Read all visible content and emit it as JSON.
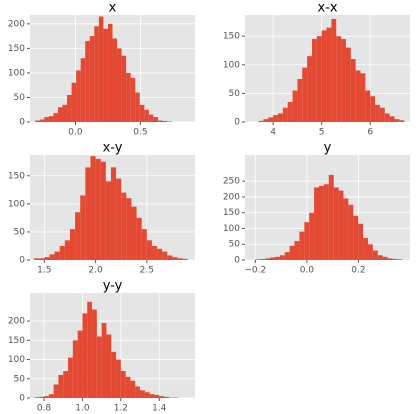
{
  "chart_data": [
    {
      "type": "histogram",
      "title": "x",
      "color": "#e24a33",
      "grid": true,
      "bins": [
        -0.31,
        -0.275,
        -0.24,
        -0.205,
        -0.17,
        -0.135,
        -0.1,
        -0.065,
        -0.03,
        0.005,
        0.04,
        0.075,
        0.11,
        0.145,
        0.18,
        0.215,
        0.25,
        0.285,
        0.32,
        0.355,
        0.39,
        0.425,
        0.46,
        0.495,
        0.53,
        0.565,
        0.6,
        0.635,
        0.67,
        0.705,
        0.74
      ],
      "counts": [
        3,
        5,
        10,
        12,
        18,
        30,
        35,
        55,
        80,
        105,
        130,
        165,
        175,
        195,
        215,
        190,
        200,
        170,
        150,
        135,
        100,
        90,
        60,
        35,
        25,
        15,
        10,
        3,
        2,
        1
      ],
      "xlim": [
        -0.35,
        0.92
      ],
      "ylim": [
        0,
        218
      ],
      "xticks": [
        {
          "value": 0,
          "label": "0.0"
        },
        0.5
      ],
      "yticks": [
        0,
        50,
        100,
        150,
        200
      ]
    },
    {
      "type": "histogram",
      "title": "x-x",
      "color": "#e24a33",
      "grid": true,
      "bins": [
        3.7,
        3.8,
        3.9,
        4.0,
        4.1,
        4.2,
        4.3,
        4.4,
        4.5,
        4.6,
        4.7,
        4.8,
        4.9,
        5.0,
        5.1,
        5.2,
        5.3,
        5.4,
        5.5,
        5.6,
        5.7,
        5.8,
        5.9,
        6.0,
        6.1,
        6.2,
        6.3,
        6.4,
        6.5,
        6.6,
        6.7
      ],
      "counts": [
        2,
        5,
        8,
        12,
        15,
        25,
        35,
        55,
        75,
        95,
        115,
        145,
        150,
        160,
        165,
        180,
        150,
        145,
        130,
        110,
        90,
        85,
        55,
        45,
        30,
        25,
        15,
        10,
        5,
        3
      ],
      "xlim": [
        3.42,
        6.82
      ],
      "ylim": [
        0,
        187
      ],
      "xticks": [
        4,
        5,
        6
      ],
      "yticks": [
        0,
        50,
        100,
        150
      ]
    },
    {
      "type": "histogram",
      "title": "x-y",
      "color": "#e24a33",
      "grid": true,
      "bins": [
        1.4,
        1.45,
        1.5,
        1.55,
        1.6,
        1.65,
        1.7,
        1.75,
        1.8,
        1.85,
        1.9,
        1.95,
        2.0,
        2.05,
        2.1,
        2.15,
        2.2,
        2.25,
        2.3,
        2.35,
        2.4,
        2.45,
        2.5,
        2.55,
        2.6,
        2.65,
        2.7,
        2.75,
        2.8,
        2.85,
        2.9
      ],
      "counts": [
        3,
        3,
        5,
        10,
        15,
        25,
        35,
        55,
        85,
        115,
        165,
        185,
        180,
        175,
        140,
        165,
        145,
        120,
        110,
        95,
        75,
        55,
        35,
        25,
        20,
        15,
        8,
        5,
        3,
        2
      ],
      "xlim": [
        1.36,
        2.97
      ],
      "ylim": [
        0,
        187
      ],
      "xticks": [
        1.5,
        {
          "value": 2,
          "label": "2.0"
        },
        2.5
      ],
      "yticks": [
        0,
        50,
        100,
        150
      ]
    },
    {
      "type": "histogram",
      "title": "y",
      "color": "#e24a33",
      "grid": true,
      "bins": [
        -0.2,
        -0.181,
        -0.162,
        -0.143,
        -0.124,
        -0.105,
        -0.086,
        -0.067,
        -0.048,
        -0.029,
        -0.01,
        0.009,
        0.028,
        0.047,
        0.066,
        0.085,
        0.104,
        0.123,
        0.142,
        0.161,
        0.18,
        0.199,
        0.218,
        0.237,
        0.256,
        0.275,
        0.294,
        0.313,
        0.332,
        0.351,
        0.37
      ],
      "counts": [
        2,
        3,
        5,
        8,
        10,
        15,
        25,
        45,
        60,
        90,
        120,
        150,
        230,
        235,
        240,
        270,
        230,
        220,
        195,
        175,
        140,
        115,
        70,
        50,
        30,
        15,
        10,
        5,
        3,
        2
      ],
      "xlim": [
        -0.24,
        0.4
      ],
      "ylim": [
        0,
        333
      ],
      "xticks": [
        {
          "value": -0.2,
          "label": "−0.2"
        },
        {
          "value": 0,
          "label": "0.0"
        },
        0.2
      ],
      "yticks": [
        0,
        50,
        100,
        150,
        200,
        250
      ]
    },
    {
      "type": "histogram",
      "title": "y-y",
      "color": "#e24a33",
      "grid": true,
      "bins": [
        0.75,
        0.775,
        0.8,
        0.825,
        0.85,
        0.875,
        0.9,
        0.925,
        0.95,
        0.975,
        1.0,
        1.025,
        1.05,
        1.075,
        1.1,
        1.125,
        1.15,
        1.175,
        1.2,
        1.225,
        1.25,
        1.275,
        1.3,
        1.325,
        1.35,
        1.375,
        1.4,
        1.425,
        1.45,
        1.475,
        1.5
      ],
      "counts": [
        2,
        3,
        5,
        10,
        35,
        60,
        70,
        105,
        150,
        175,
        220,
        250,
        230,
        160,
        195,
        165,
        120,
        100,
        70,
        55,
        45,
        30,
        20,
        15,
        10,
        8,
        5,
        3,
        1,
        1
      ],
      "xlim": [
        0.727,
        1.586
      ],
      "ylim": [
        0,
        273
      ],
      "xticks": [
        0.8,
        {
          "value": 1,
          "label": "1.0"
        },
        1.2,
        1.4
      ],
      "yticks": [
        0,
        50,
        100,
        150,
        200
      ]
    }
  ]
}
